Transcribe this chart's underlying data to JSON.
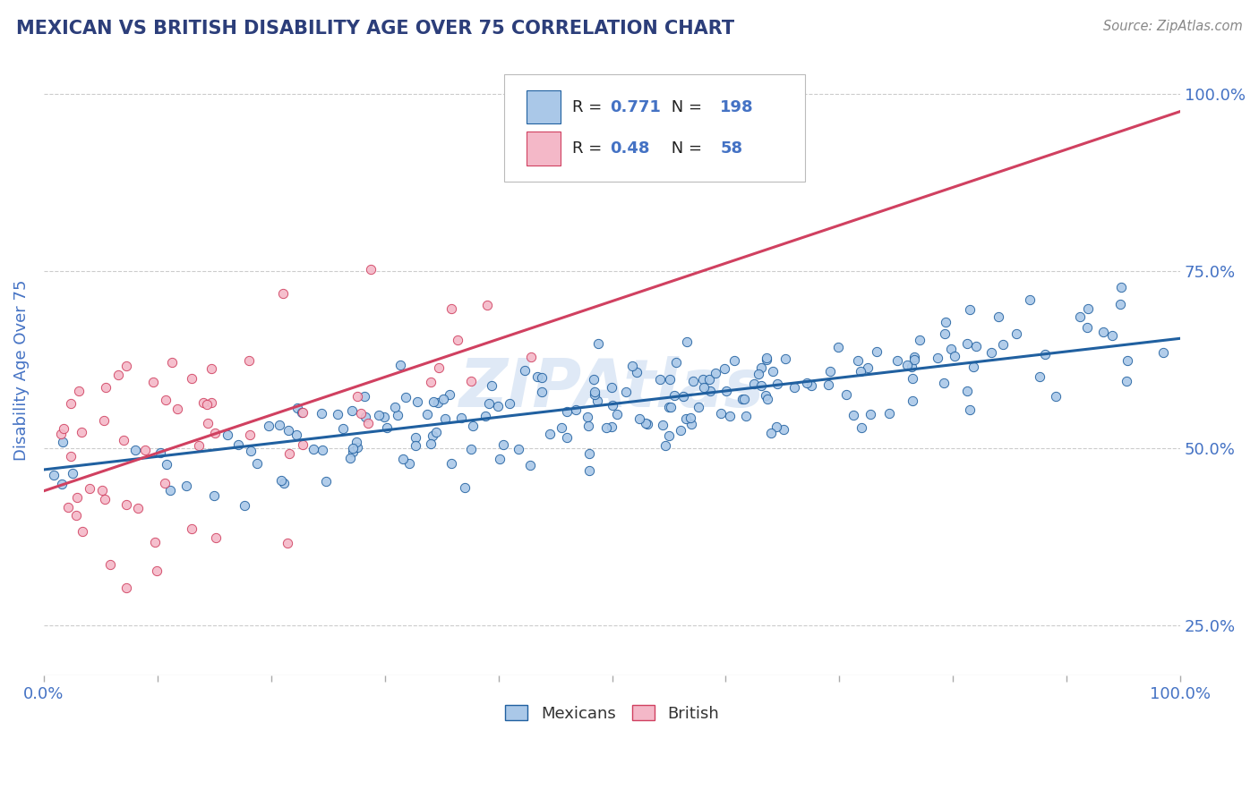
{
  "title": "MEXICAN VS BRITISH DISABILITY AGE OVER 75 CORRELATION CHART",
  "source": "Source: ZipAtlas.com",
  "ylabel": "Disability Age Over 75",
  "r_mexican": 0.771,
  "n_mexican": 198,
  "r_british": 0.48,
  "n_british": 58,
  "xlim": [
    0.0,
    1.0
  ],
  "ylim": [
    0.18,
    1.04
  ],
  "yticks": [
    0.25,
    0.5,
    0.75,
    1.0
  ],
  "ytick_labels": [
    "25.0%",
    "50.0%",
    "75.0%",
    "100.0%"
  ],
  "color_mexican": "#aac8e8",
  "color_british": "#f4b8c8",
  "line_color_mexican": "#2060a0",
  "line_color_british": "#d04060",
  "watermark": "ZIPAtlas",
  "background_color": "#ffffff",
  "grid_color": "#cccccc",
  "title_color": "#2c3e7a",
  "axis_label_color": "#4472c4",
  "legend_text_color": "#333333",
  "source_color": "#888888",
  "mex_slope": 0.185,
  "mex_intercept": 0.47,
  "brit_slope": 0.535,
  "brit_intercept": 0.44,
  "mex_noise": 0.038,
  "brit_noise": 0.095,
  "mex_seed": 42,
  "brit_seed": 99
}
